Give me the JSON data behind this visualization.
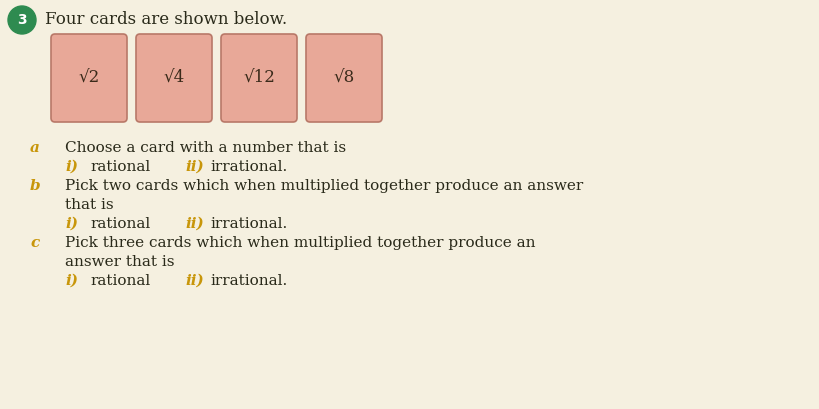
{
  "background_color": "#f5f0e0",
  "card_color": "#e8a898",
  "card_border_color": "#b87868",
  "card_labels": [
    "√2",
    "√4",
    "√12",
    "√8"
  ],
  "number_circle_color": "#2e8b50",
  "number_text": "3",
  "title_text": "Four cards are shown below.",
  "label_color": "#c8960a",
  "roman_color": "#c8960a",
  "body_color": "#2a2a1a",
  "fig_width": 8.2,
  "fig_height": 4.09,
  "dpi": 100
}
